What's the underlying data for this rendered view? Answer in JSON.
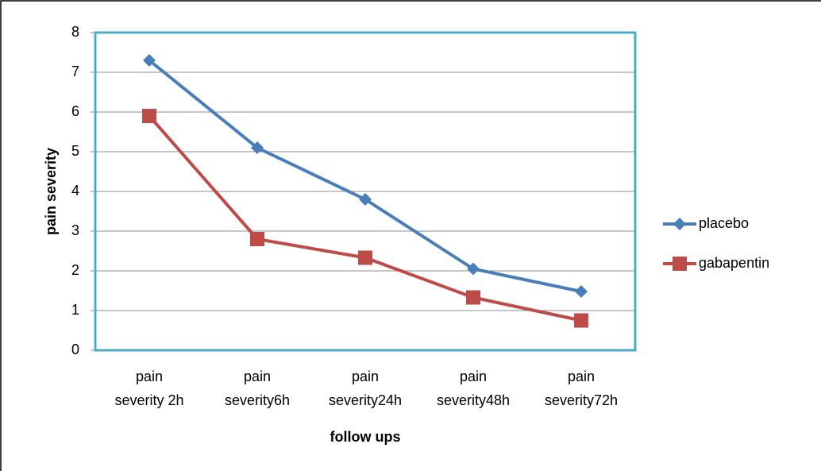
{
  "chart_data": {
    "type": "line",
    "x_label": "follow ups",
    "y_label": "pain severity",
    "categories": [
      "pain severity 2h",
      "pain severity6h",
      "pain severity24h",
      "pain severity48h",
      "pain severity72h"
    ],
    "series": [
      {
        "name": "placebo",
        "color": "#4a7ebb",
        "marker": "diamond",
        "values": [
          7.3,
          5.1,
          3.8,
          2.05,
          1.48
        ]
      },
      {
        "name": "gabapentin",
        "color": "#be4b48",
        "marker": "square",
        "values": [
          5.9,
          2.8,
          2.33,
          1.33,
          0.75
        ]
      }
    ],
    "ylim": [
      0,
      8
    ],
    "yticks": [
      0,
      1,
      2,
      3,
      4,
      5,
      6,
      7,
      8
    ],
    "grid": true,
    "legend": "right"
  }
}
